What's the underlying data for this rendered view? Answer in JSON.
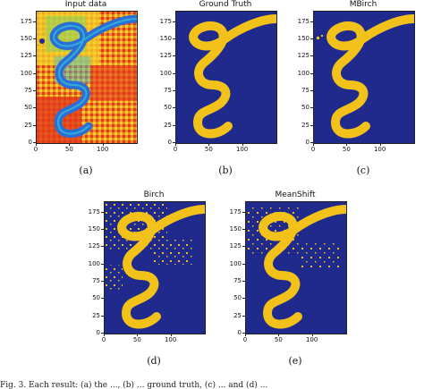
{
  "figure": {
    "caption_fragment": "Fig. 3.   Each result: (a) the ..., (b) ... ground truth, (c) ... and (d) ...",
    "yticks": [
      "0",
      "25",
      "50",
      "75",
      "100",
      "125",
      "150",
      "175"
    ],
    "xticks": [
      "0",
      "50",
      "100"
    ],
    "panels": [
      {
        "id": "a",
        "title": "Input data",
        "caption": "(a)"
      },
      {
        "id": "b",
        "title": "Ground Truth",
        "caption": "(b)"
      },
      {
        "id": "c",
        "title": "MBirch",
        "caption": "(c)"
      },
      {
        "id": "d",
        "title": "Birch",
        "caption": "(d)"
      },
      {
        "id": "e",
        "title": "MeanShift",
        "caption": "(e)"
      }
    ],
    "colors": {
      "background_class": "#1f2a8c",
      "river_class": "#f2c21b",
      "input_hot": "#e23a1c",
      "input_warm": "#f3d22a",
      "input_cool": "#38c7d6",
      "input_river": "#2a6fd6"
    }
  }
}
